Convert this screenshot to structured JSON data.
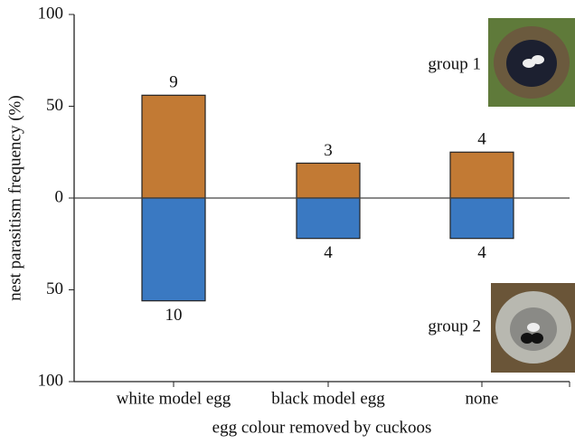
{
  "chart_data": {
    "type": "diverging-bar",
    "x_label": "egg colour removed by cuckoos",
    "y_label": "nest parasitism frequency (%)",
    "categories": [
      "white model egg",
      "black model egg",
      "none"
    ],
    "series": [
      {
        "name": "group 1",
        "color": "#c27a34",
        "values": [
          56,
          19,
          25
        ],
        "counts": [
          9,
          3,
          4
        ]
      },
      {
        "name": "group 2",
        "color": "#3a79c2",
        "values": [
          -56,
          -22,
          -22
        ],
        "counts": [
          10,
          4,
          4
        ]
      }
    ],
    "ylim": [
      -100,
      100
    ],
    "yticks": [
      {
        "value": -100,
        "label": "100"
      },
      {
        "value": -50,
        "label": "50"
      },
      0,
      50,
      100
    ]
  }
}
